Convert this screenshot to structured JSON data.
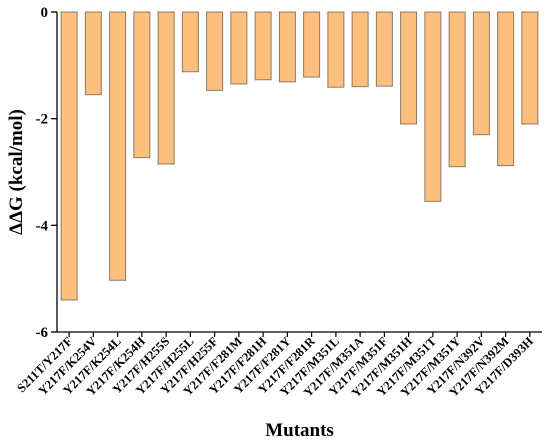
{
  "chart_data": {
    "type": "bar",
    "title": "",
    "xlabel": "Mutants",
    "ylabel": "ΔΔG (kcal/mol)",
    "ylim": [
      -6,
      0
    ],
    "yticks": [
      0,
      -2,
      -4,
      -6
    ],
    "ytick_labels": [
      "0",
      "-2",
      "-4",
      "-6"
    ],
    "grid": false,
    "bar_color": "#FDBF7E",
    "bar_edge_color": "#8C7A64",
    "categories": [
      "S211T/Y217F",
      "Y217F/K254V",
      "Y217F/K254L",
      "Y217F/K254H",
      "Y217F/H255S",
      "Y217F/H255L",
      "Y217F/H255F",
      "Y217F/F281M",
      "Y217F/F281H",
      "Y217F/F281Y",
      "Y217F/F281R",
      "Y217F/M351L",
      "Y217F/M351A",
      "Y217F/M351F",
      "Y217F/M351H",
      "Y217F/M351T",
      "Y217F/M351Y",
      "Y217F/N392V",
      "Y217F/N392M",
      "Y217F/D393H"
    ],
    "values": [
      -5.4,
      -1.55,
      -5.03,
      -2.73,
      -2.85,
      -1.12,
      -1.47,
      -1.35,
      -1.27,
      -1.31,
      -1.22,
      -1.41,
      -1.4,
      -1.39,
      -2.1,
      -3.55,
      -2.9,
      -2.3,
      -2.88,
      -2.1
    ]
  }
}
